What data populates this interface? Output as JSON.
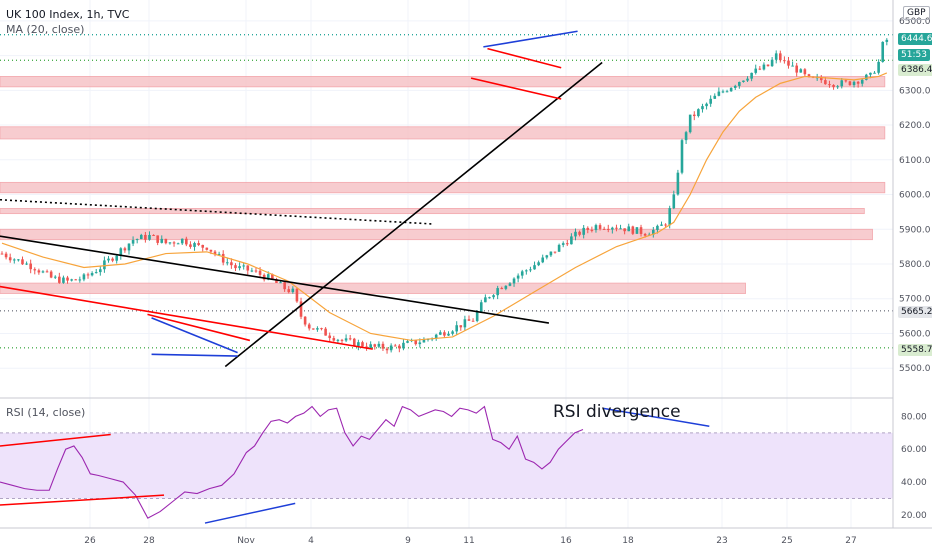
{
  "header": {
    "symbol": "UK 100 Index, 1h, TVC",
    "indicator": "MA (20, close)",
    "rsi_label": "RSI (14, close)",
    "currency": "GBP"
  },
  "annotation": "RSI divergence",
  "price_tags": {
    "current": "6444.6",
    "countdown": "51:53",
    "l1": "6386.4",
    "l2": "5665.2",
    "l3": "5558.7"
  },
  "colors": {
    "candle_up": "#26a69a",
    "candle_down": "#ef5350",
    "ma": "#f7a43b",
    "rsi": "#9c27b0",
    "zone": "#f6c4c7",
    "trend_black": "#000000",
    "trend_red": "#ff0000",
    "trend_blue": "#1e3fd8"
  },
  "chart_data": [
    {
      "type": "candlestick",
      "title": "UK 100 Index, 1h, TVC",
      "ylim": [
        5420,
        6560
      ],
      "y_ticks": [
        "6500.0",
        "6400.0",
        "6300.0",
        "6200.0",
        "6100.0",
        "6000.0",
        "5900.0",
        "5800.0",
        "5700.0",
        "5600.0",
        "5500.0"
      ],
      "x_ticks": [
        "26",
        "28",
        "Nov",
        "4",
        "9",
        "11",
        "16",
        "18",
        "23",
        "25",
        "27"
      ],
      "close_path": [
        [
          0,
          5830
        ],
        [
          4,
          5810
        ],
        [
          8,
          5790
        ],
        [
          12,
          5760
        ],
        [
          16,
          5750
        ],
        [
          20,
          5760
        ],
        [
          24,
          5790
        ],
        [
          28,
          5830
        ],
        [
          32,
          5870
        ],
        [
          36,
          5880
        ],
        [
          40,
          5860
        ],
        [
          44,
          5870
        ],
        [
          48,
          5850
        ],
        [
          50,
          5850
        ],
        [
          53,
          5820
        ],
        [
          57,
          5790
        ],
        [
          61,
          5780
        ],
        [
          65,
          5760
        ],
        [
          69,
          5730
        ],
        [
          71,
          5720
        ],
        [
          73,
          5650
        ],
        [
          75,
          5620
        ],
        [
          79,
          5600
        ],
        [
          83,
          5580
        ],
        [
          87,
          5570
        ],
        [
          91,
          5560
        ],
        [
          95,
          5560
        ],
        [
          99,
          5570
        ],
        [
          103,
          5580
        ],
        [
          107,
          5600
        ],
        [
          111,
          5620
        ],
        [
          115,
          5640
        ],
        [
          118,
          5700
        ],
        [
          121,
          5730
        ],
        [
          125,
          5760
        ],
        [
          129,
          5790
        ],
        [
          133,
          5820
        ],
        [
          137,
          5860
        ],
        [
          141,
          5890
        ],
        [
          145,
          5910
        ],
        [
          149,
          5910
        ],
        [
          153,
          5900
        ],
        [
          157,
          5890
        ],
        [
          160,
          5900
        ],
        [
          162,
          5920
        ],
        [
          164,
          5990
        ],
        [
          166,
          6150
        ],
        [
          168,
          6220
        ],
        [
          171,
          6250
        ],
        [
          175,
          6290
        ],
        [
          179,
          6320
        ],
        [
          183,
          6350
        ],
        [
          187,
          6370
        ],
        [
          189,
          6400
        ],
        [
          191,
          6380
        ],
        [
          194,
          6360
        ],
        [
          197,
          6330
        ],
        [
          200,
          6330
        ],
        [
          203,
          6320
        ],
        [
          206,
          6320
        ],
        [
          209,
          6330
        ],
        [
          212,
          6340
        ],
        [
          214,
          6380
        ],
        [
          215,
          6430
        ],
        [
          216,
          6445
        ]
      ],
      "ma_path": [
        [
          0,
          5860
        ],
        [
          10,
          5820
        ],
        [
          20,
          5790
        ],
        [
          30,
          5800
        ],
        [
          40,
          5830
        ],
        [
          50,
          5835
        ],
        [
          60,
          5800
        ],
        [
          70,
          5750
        ],
        [
          80,
          5660
        ],
        [
          90,
          5600
        ],
        [
          100,
          5580
        ],
        [
          110,
          5590
        ],
        [
          120,
          5650
        ],
        [
          130,
          5720
        ],
        [
          140,
          5790
        ],
        [
          150,
          5850
        ],
        [
          160,
          5890
        ],
        [
          164,
          5920
        ],
        [
          168,
          6000
        ],
        [
          172,
          6100
        ],
        [
          176,
          6180
        ],
        [
          180,
          6240
        ],
        [
          184,
          6280
        ],
        [
          190,
          6320
        ],
        [
          196,
          6340
        ],
        [
          202,
          6335
        ],
        [
          208,
          6330
        ],
        [
          214,
          6340
        ],
        [
          216,
          6350
        ]
      ],
      "zones": [
        {
          "x0": 0,
          "x1": 216,
          "y0": 6310,
          "y1": 6340
        },
        {
          "x0": 0,
          "x1": 216,
          "y0": 6160,
          "y1": 6195
        },
        {
          "x0": 0,
          "x1": 216,
          "y0": 6005,
          "y1": 6035
        },
        {
          "x0": 0,
          "x1": 211,
          "y0": 5945,
          "y1": 5960
        },
        {
          "x0": 0,
          "x1": 213,
          "y0": 5870,
          "y1": 5900
        },
        {
          "x0": 0,
          "x1": 182,
          "y0": 5715,
          "y1": 5745
        }
      ],
      "trendlines": [
        {
          "color": "black",
          "dash": false,
          "x0": 0,
          "y0": 5880,
          "x1": 134,
          "y1": 5630
        },
        {
          "color": "black",
          "dash": false,
          "x0": 55,
          "y0": 5505,
          "x1": 147,
          "y1": 6380
        },
        {
          "color": "black",
          "dash": true,
          "x0": 0,
          "y0": 5985,
          "x1": 106,
          "y1": 5915
        },
        {
          "color": "red",
          "dash": false,
          "x0": 0,
          "y0": 5735,
          "x1": 91,
          "y1": 5555
        },
        {
          "color": "red",
          "dash": false,
          "x0": 36,
          "y0": 5655,
          "x1": 61,
          "y1": 5580
        },
        {
          "color": "red",
          "dash": false,
          "x0": 119,
          "y0": 6420,
          "x1": 137,
          "y1": 6365
        },
        {
          "color": "red",
          "dash": false,
          "x0": 115,
          "y0": 6335,
          "x1": 137,
          "y1": 6275
        },
        {
          "color": "blue",
          "dash": false,
          "x0": 37,
          "y0": 5645,
          "x1": 58,
          "y1": 5545
        },
        {
          "color": "blue",
          "dash": false,
          "x0": 37,
          "y0": 5540,
          "x1": 58,
          "y1": 5535
        },
        {
          "color": "blue",
          "dash": false,
          "x0": 118,
          "y0": 6425,
          "x1": 141,
          "y1": 6470
        }
      ],
      "h_levels": [
        {
          "value": 6460,
          "style": "dotted",
          "color": "teal"
        },
        {
          "value": 6386.4,
          "style": "dotted",
          "color": "green"
        },
        {
          "value": 5665.2,
          "style": "dotted",
          "color": "gray"
        },
        {
          "value": 5558.7,
          "style": "dotted",
          "color": "green"
        }
      ]
    },
    {
      "type": "line",
      "title": "RSI (14, close)",
      "ylim": [
        12,
        90
      ],
      "y_ticks": [
        "80.00",
        "60.00",
        "40.00",
        "20.00"
      ],
      "band": [
        30,
        70
      ],
      "series": [
        {
          "values": [
            [
              0,
              40
            ],
            [
              3,
              38
            ],
            [
              6,
              36
            ],
            [
              9,
              35
            ],
            [
              12,
              35
            ],
            [
              14,
              48
            ],
            [
              16,
              60
            ],
            [
              18,
              62
            ],
            [
              20,
              55
            ],
            [
              22,
              45
            ],
            [
              24,
              44
            ],
            [
              27,
              42
            ],
            [
              30,
              40
            ],
            [
              33,
              32
            ],
            [
              36,
              18
            ],
            [
              39,
              22
            ],
            [
              42,
              28
            ],
            [
              45,
              34
            ],
            [
              48,
              33
            ],
            [
              51,
              36
            ],
            [
              54,
              38
            ],
            [
              57,
              45
            ],
            [
              60,
              58
            ],
            [
              62,
              62
            ],
            [
              64,
              70
            ],
            [
              66,
              77
            ],
            [
              68,
              78
            ],
            [
              70,
              76
            ],
            [
              72,
              80
            ],
            [
              74,
              82
            ],
            [
              76,
              86
            ],
            [
              78,
              80
            ],
            [
              80,
              84
            ],
            [
              82,
              85
            ],
            [
              84,
              70
            ],
            [
              86,
              62
            ],
            [
              88,
              68
            ],
            [
              90,
              66
            ],
            [
              92,
              72
            ],
            [
              94,
              78
            ],
            [
              96,
              74
            ],
            [
              98,
              86
            ],
            [
              100,
              84
            ],
            [
              102,
              80
            ],
            [
              104,
              82
            ],
            [
              106,
              84
            ],
            [
              108,
              83
            ],
            [
              110,
              80
            ],
            [
              112,
              85
            ],
            [
              114,
              84
            ],
            [
              116,
              82
            ],
            [
              118,
              86
            ],
            [
              120,
              66
            ],
            [
              122,
              64
            ],
            [
              124,
              60
            ],
            [
              126,
              68
            ],
            [
              128,
              54
            ],
            [
              130,
              52
            ],
            [
              132,
              48
            ],
            [
              134,
              52
            ],
            [
              136,
              60
            ],
            [
              138,
              65
            ],
            [
              140,
              70
            ],
            [
              142,
              72
            ]
          ]
        }
      ],
      "trendlines": [
        {
          "color": "red",
          "x0": 0,
          "y0": 62,
          "x1": 27,
          "y1": 69
        },
        {
          "color": "red",
          "x0": 0,
          "y0": 26,
          "x1": 40,
          "y1": 32
        },
        {
          "color": "blue",
          "x0": 50,
          "y0": 15,
          "x1": 72,
          "y1": 27
        },
        {
          "color": "blue",
          "x0": 147,
          "y0": 85,
          "x1": 173,
          "y1": 74
        }
      ]
    }
  ]
}
